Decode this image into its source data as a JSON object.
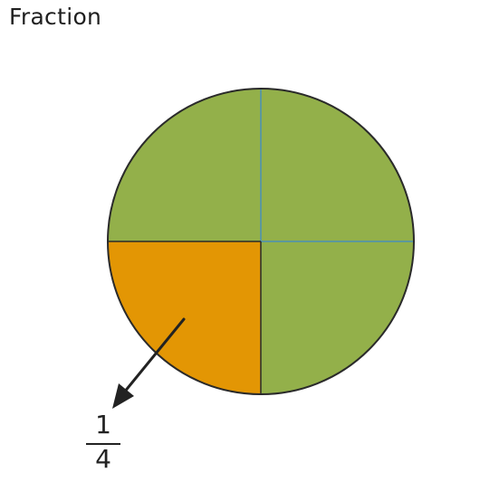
{
  "title": "Fraction",
  "fraction": {
    "numerator": "1",
    "denominator": "4"
  },
  "circle": {
    "total_parts": 4,
    "shaded_parts": 1,
    "colors": {
      "unshaded": "#93b04a",
      "shaded": "#e39604",
      "outline": "#2a2a2a",
      "divider": "#4a8fb8",
      "arrow": "#222222"
    }
  }
}
